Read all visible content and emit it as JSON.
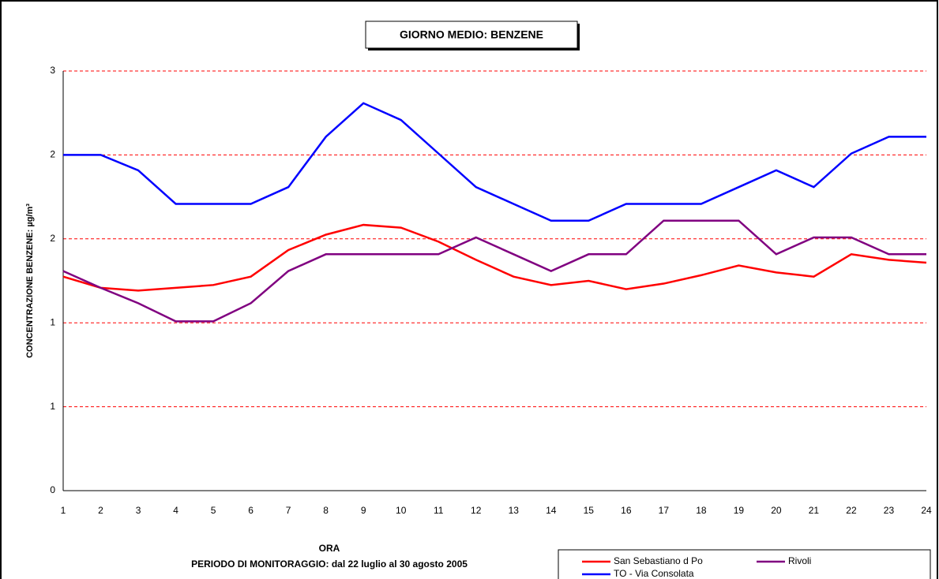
{
  "chart_data": {
    "type": "line",
    "title": "GIORNO MEDIO: BENZENE",
    "y_label": "CONCENTRAZIONE BENZENE: µg/m³",
    "x_label": "ORA",
    "subtitle": "PERIODO DI MONITORAGGIO: dal 22 luglio al 30 agosto 2005",
    "categories": [
      "1",
      "2",
      "3",
      "4",
      "5",
      "6",
      "7",
      "8",
      "9",
      "10",
      "11",
      "12",
      "13",
      "14",
      "15",
      "16",
      "17",
      "18",
      "19",
      "20",
      "21",
      "22",
      "23",
      "24"
    ],
    "series": [
      {
        "name": "San Sebastiano d Po",
        "color": "#ff0000",
        "values": [
          1.53,
          1.45,
          1.43,
          1.45,
          1.47,
          1.53,
          1.72,
          1.83,
          1.9,
          1.88,
          1.78,
          1.65,
          1.53,
          1.47,
          1.5,
          1.44,
          1.48,
          1.54,
          1.61,
          1.56,
          1.53,
          1.69,
          1.65,
          1.63
        ]
      },
      {
        "name": "Rivoli",
        "color": "#800080",
        "values": [
          1.57,
          1.45,
          1.34,
          1.21,
          1.21,
          1.34,
          1.57,
          1.69,
          1.69,
          1.69,
          1.69,
          1.81,
          1.69,
          1.57,
          1.69,
          1.69,
          1.93,
          1.93,
          1.93,
          1.69,
          1.81,
          1.81,
          1.69,
          1.69
        ]
      },
      {
        "name": "TO - Via Consolata",
        "color": "#0000ff",
        "values": [
          2.4,
          2.4,
          2.29,
          2.05,
          2.05,
          2.05,
          2.17,
          2.53,
          2.77,
          2.65,
          2.41,
          2.17,
          2.05,
          1.93,
          1.93,
          2.05,
          2.05,
          2.05,
          2.17,
          2.29,
          2.17,
          2.41,
          2.53,
          2.53
        ]
      }
    ],
    "ylim": [
      0,
      3
    ],
    "yticks": [
      0,
      {
        "value": 0.6,
        "label": "1"
      },
      {
        "value": 1.2,
        "label": "1"
      },
      {
        "value": 1.8,
        "label": "2"
      },
      {
        "value": 2.4,
        "label": "2"
      },
      3
    ],
    "grid": true,
    "grid_color": "#ff0000",
    "legend_position": "bottom-right"
  }
}
